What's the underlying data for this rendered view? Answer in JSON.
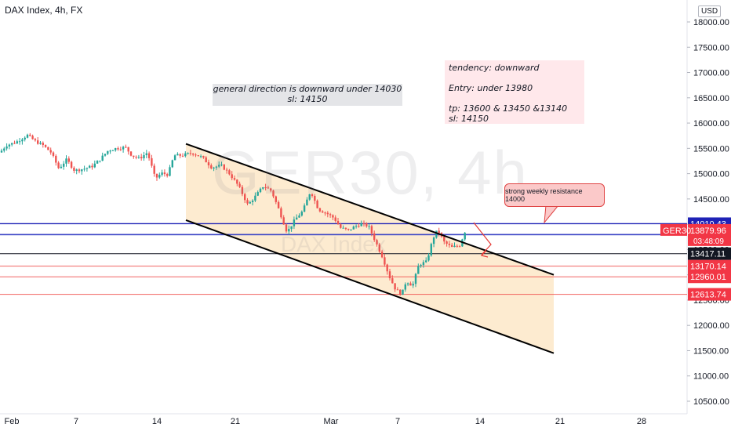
{
  "header": {
    "title": "DAX Index, 4h, FX",
    "currency": "USD"
  },
  "watermark": {
    "symbol": "GER30, 4h",
    "name": "DAX Index"
  },
  "notes": {
    "general": [
      "general direction is downward under 14030",
      "sl: 14150"
    ],
    "trade": [
      "tendency: downward",
      "Entry: under 13980",
      "tp: 13600 & 13450 &13140",
      "sl: 14150"
    ],
    "callout": "strong weekly resistance 14000"
  },
  "colors": {
    "up": "#26a69a",
    "down": "#ef5350",
    "channel_fill": "#fde7c8",
    "blue_line": "#1e22b6",
    "red_line": "#ef5350",
    "black_line": "#131722"
  },
  "chart_data": {
    "type": "candlestick",
    "title": "DAX Index, 4h, FX",
    "ylim": [
      10400,
      18200
    ],
    "y_ticks": [
      10500,
      11000,
      11500,
      12000,
      12500,
      13000,
      13500,
      14000,
      14500,
      15000,
      15500,
      16000,
      16500,
      17000,
      17500,
      18000
    ],
    "y_tick_labels": [
      "10500.00",
      "11000.00",
      "11500.00",
      "12000.00",
      "12500.00",
      "13000.00",
      "13500.00",
      "14000.00",
      "14500.00",
      "15000.00",
      "15500.00",
      "16000.00",
      "16500.00",
      "17000.00",
      "17500.00",
      "18000.00"
    ],
    "x_ticks": [
      "Feb",
      "7",
      "14",
      "21",
      "Mar",
      "7",
      "14",
      "21",
      "28"
    ],
    "price_path": [
      [
        0,
        15420
      ],
      [
        8,
        15560
      ],
      [
        20,
        15620
      ],
      [
        35,
        15760
      ],
      [
        45,
        15640
      ],
      [
        55,
        15560
      ],
      [
        65,
        15420
      ],
      [
        75,
        15100
      ],
      [
        85,
        15280
      ],
      [
        95,
        15060
      ],
      [
        108,
        15100
      ],
      [
        118,
        15150
      ],
      [
        128,
        15290
      ],
      [
        138,
        15460
      ],
      [
        148,
        15500
      ],
      [
        160,
        15520
      ],
      [
        168,
        15360
      ],
      [
        178,
        15300
      ],
      [
        188,
        15420
      ],
      [
        198,
        14900
      ],
      [
        206,
        15010
      ],
      [
        214,
        14980
      ],
      [
        222,
        15360
      ],
      [
        232,
        15360
      ],
      [
        245,
        15410
      ],
      [
        258,
        15320
      ],
      [
        270,
        15120
      ],
      [
        282,
        15160
      ],
      [
        292,
        15010
      ],
      [
        304,
        14760
      ],
      [
        316,
        14380
      ],
      [
        326,
        14560
      ],
      [
        336,
        14760
      ],
      [
        346,
        14660
      ],
      [
        356,
        14270
      ],
      [
        366,
        13840
      ],
      [
        376,
        14090
      ],
      [
        386,
        14260
      ],
      [
        396,
        14660
      ],
      [
        406,
        14290
      ],
      [
        416,
        14220
      ],
      [
        426,
        14120
      ],
      [
        434,
        13930
      ],
      [
        444,
        13880
      ],
      [
        452,
        13950
      ],
      [
        460,
        14010
      ],
      [
        470,
        13960
      ],
      [
        478,
        13680
      ],
      [
        488,
        13340
      ],
      [
        496,
        12980
      ],
      [
        504,
        12720
      ],
      [
        512,
        12610
      ],
      [
        518,
        12880
      ],
      [
        526,
        12780
      ],
      [
        534,
        13200
      ],
      [
        544,
        13260
      ],
      [
        552,
        13720
      ],
      [
        558,
        13890
      ],
      [
        566,
        13650
      ],
      [
        576,
        13540
      ],
      [
        586,
        13580
      ],
      [
        594,
        13900
      ]
    ],
    "last_price": 13879.96,
    "countdown": "03:48:09",
    "symbol": "GER30",
    "levels": [
      {
        "value": 14010.43,
        "label": "14010.43",
        "color": "#1e22b6",
        "kind": "blue"
      },
      {
        "value": 13798.99,
        "label": "13798.99",
        "color": "#1e22b6",
        "kind": "blue"
      },
      {
        "value": 13417.11,
        "label": "13417.11",
        "color": "#131722",
        "kind": "black"
      },
      {
        "value": 13170.14,
        "label": "13170.14",
        "color": "#ef5350",
        "kind": "red"
      },
      {
        "value": 12960.01,
        "label": "12960.01",
        "color": "#ef5350",
        "kind": "red"
      },
      {
        "value": 12613.74,
        "label": "12613.74",
        "color": "#ef5350",
        "kind": "red"
      }
    ],
    "channel": {
      "upper": [
        [
          237,
          15590
        ],
        [
          706,
          13000
        ]
      ],
      "lower": [
        [
          237,
          14080
        ],
        [
          706,
          11450
        ]
      ]
    }
  }
}
